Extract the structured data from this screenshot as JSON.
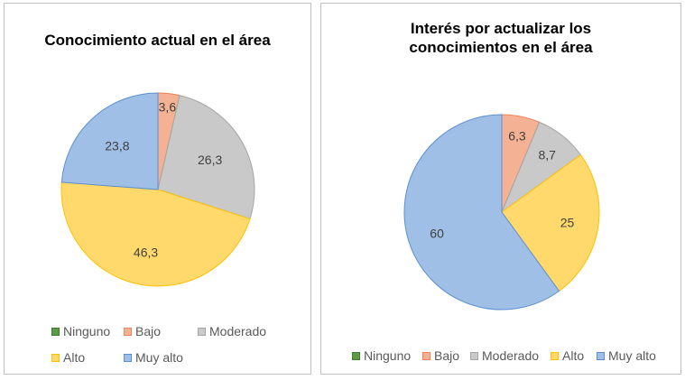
{
  "chart_data": [
    {
      "type": "pie",
      "title": "Conocimiento actual en el área",
      "categories": [
        "Ninguno",
        "Bajo",
        "Moderado",
        "Alto",
        "Muy alto"
      ],
      "values": [
        0,
        3.6,
        26.3,
        46.3,
        23.8
      ],
      "labels": [
        "",
        "3,6",
        "26,3",
        "46,3",
        "23,8"
      ],
      "colors": [
        "#5b9b45",
        "#f4b193",
        "#c9c9c9",
        "#ffd96b",
        "#9fbfe6"
      ],
      "edge_colors": [
        "#3f7a2e",
        "#ee8356",
        "#a5a5a5",
        "#ffc000",
        "#5b8fd0"
      ],
      "legend": "bottom"
    },
    {
      "type": "pie",
      "title": "Interés por actualizar los conocimientos en el área",
      "categories": [
        "Ninguno",
        "Bajo",
        "Moderado",
        "Alto",
        "Muy alto"
      ],
      "values": [
        0,
        6.3,
        8.7,
        25,
        60
      ],
      "labels": [
        "",
        "6,3",
        "8,7",
        "25",
        "60"
      ],
      "colors": [
        "#5b9b45",
        "#f4b193",
        "#c9c9c9",
        "#ffd96b",
        "#9fbfe6"
      ],
      "edge_colors": [
        "#3f7a2e",
        "#ee8356",
        "#a5a5a5",
        "#ffc000",
        "#5b8fd0"
      ],
      "legend": "bottom"
    }
  ]
}
